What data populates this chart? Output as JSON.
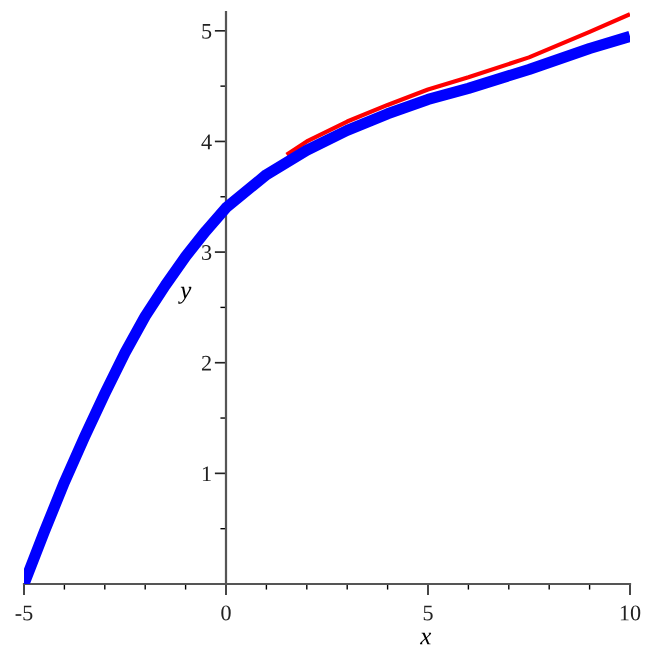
{
  "chart_data": {
    "type": "line",
    "xlabel": "x",
    "ylabel": "y",
    "series": [
      {
        "color": "#ff0000",
        "x": [
          1.5,
          2,
          3,
          4,
          5,
          6,
          7.5,
          9,
          10
        ],
        "values": [
          3.88,
          4.0,
          4.18,
          4.33,
          4.47,
          4.58,
          4.76,
          4.99,
          5.15
        ]
      },
      {
        "color": "#0000ff",
        "x": [
          -5,
          -4.5,
          -4,
          -3.5,
          -3,
          -2.5,
          -2,
          -1.5,
          -1,
          -0.5,
          0,
          1,
          2,
          3,
          4,
          5,
          6,
          7.5,
          9,
          10
        ],
        "values": [
          0,
          0.47,
          0.92,
          1.33,
          1.72,
          2.09,
          2.42,
          2.7,
          2.96,
          3.19,
          3.4,
          3.7,
          3.92,
          4.1,
          4.25,
          4.38,
          4.48,
          4.65,
          4.84,
          4.95
        ]
      }
    ],
    "xlim": [
      -5,
      10
    ],
    "ylim": [
      0,
      5.17
    ],
    "xticks": [
      -5,
      0,
      5,
      10
    ],
    "yticks": [
      1,
      2,
      3,
      4,
      5
    ],
    "grid": false,
    "legend": false,
    "marker": "none",
    "line_style": "solid"
  }
}
